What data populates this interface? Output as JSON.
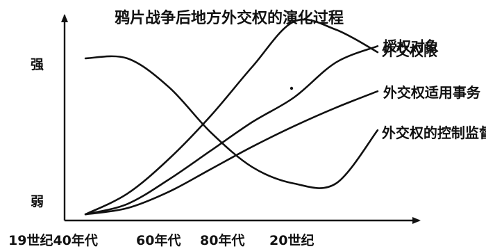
{
  "chart_data": {
    "type": "line",
    "title": "鸦片战争后地方外交权的演化过程",
    "y_tick_labels": [
      "强",
      "弱"
    ],
    "x_tick_labels": [
      "19世纪40年代",
      "60年代",
      "80年代",
      "20世纪"
    ],
    "x": [
      1840,
      1850,
      1860,
      1870,
      1880,
      1890,
      1900,
      1910
    ],
    "xlim": [
      1835,
      1920
    ],
    "ylim": [
      0,
      10
    ],
    "series": [
      {
        "name": "外交权限",
        "values": [
          0.3,
          1.3,
          3.0,
          5.1,
          7.5,
          9.7,
          9.3,
          8.2
        ]
      },
      {
        "name": "授权对象",
        "values": [
          0.3,
          0.8,
          2.0,
          3.4,
          4.8,
          6.0,
          7.7,
          8.5
        ]
      },
      {
        "name": "外交权适用事务",
        "values": [
          0.3,
          0.6,
          1.4,
          2.5,
          3.6,
          4.6,
          5.5,
          6.3
        ]
      },
      {
        "name": "外交权的控制监督",
        "values": [
          7.9,
          7.9,
          6.5,
          4.3,
          2.6,
          1.8,
          1.8,
          4.4
        ]
      }
    ],
    "grid": false,
    "legend": "labels at line ends"
  }
}
